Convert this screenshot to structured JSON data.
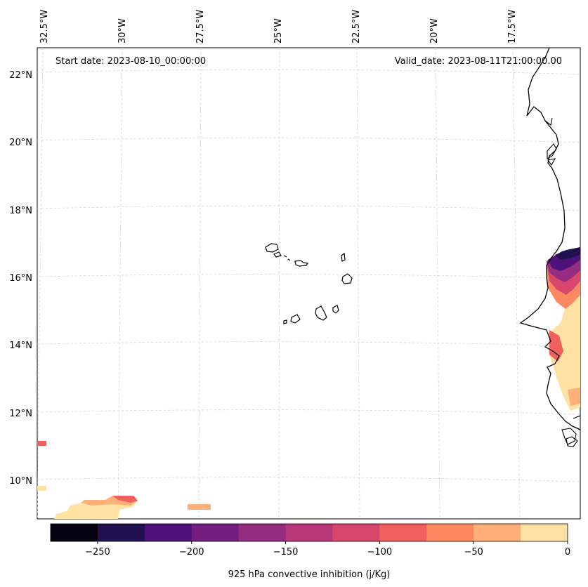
{
  "header": {
    "start_date": "Start date: 2023-08-10_00:00:00",
    "valid_date": "Valid_date: 2023-08-11T21:00:00.00"
  },
  "axes": {
    "longitude_labels": [
      "32.5°W",
      "30°W",
      "27.5°W",
      "25°W",
      "22.5°W",
      "20°W",
      "17.5°W"
    ],
    "latitude_labels": [
      "22°N",
      "20°N",
      "18°N",
      "16°N",
      "14°N",
      "12°N",
      "10°N"
    ]
  },
  "colorbar": {
    "label": "925 hPa convective inhibition (j/Kg)",
    "tick_labels": [
      "−250",
      "−200",
      "−150",
      "−100",
      "−50",
      "0"
    ],
    "colors": [
      "#05030f",
      "#221150",
      "#4e107b",
      "#731e80",
      "#942c80",
      "#b8367a",
      "#d9466b",
      "#f1605d",
      "#fc8961",
      "#feb078",
      "#fde2a3"
    ]
  }
}
